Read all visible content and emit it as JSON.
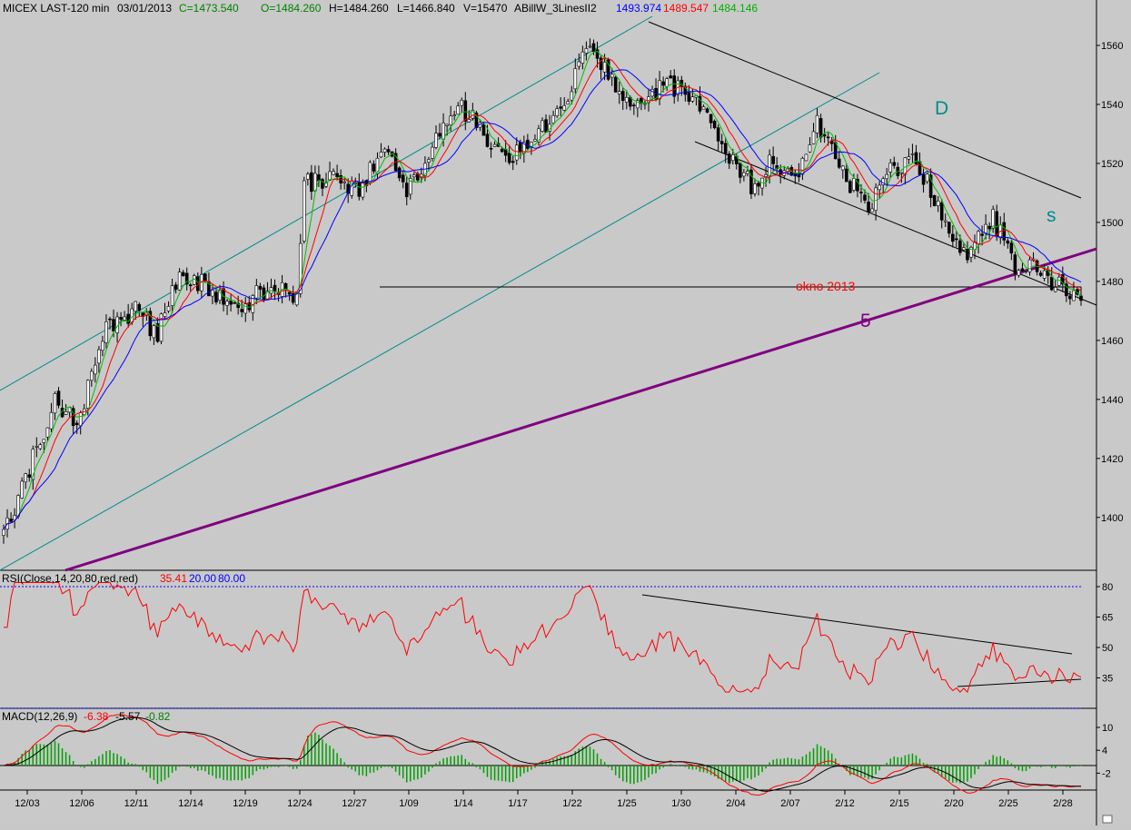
{
  "header": {
    "symbol": "MICEX LAST-120 min",
    "date": "03/01/2013",
    "close": "C=1473.540",
    "open": "O=1484.260",
    "high": "H=1484.260",
    "low": "L=1466.840",
    "volume": "V=15470",
    "indicator": "ABillW_3LinesII2",
    "ind_blue": "1493.974",
    "ind_red": "1489.547",
    "ind_green": "1484.146"
  },
  "rsi_header": {
    "label": "RSI(Close,14,20,80,red,red)",
    "value": "35.41",
    "low": "20.00",
    "high": "80.00"
  },
  "macd_header": {
    "label": "MACD(12,26,9)",
    "macd": "-6.38",
    "signal": "-5.57",
    "hist": "-0.82"
  },
  "annotations": {
    "window": "okno 2013",
    "d": "D",
    "s": "s",
    "five": "5"
  },
  "colors": {
    "background": "#c9c9c9",
    "up_candle": "#ffffff",
    "down_candle": "#000000",
    "blue": "#0000ff",
    "red": "#ff0000",
    "green": "#00c000",
    "channel": "#008b8b",
    "trend5": "#800080",
    "hist": "#00a000"
  },
  "chart_data": [
    {
      "type": "candlestick",
      "title": "MICEX LAST-120 min",
      "xlabel": "",
      "ylabel": "",
      "ylim": [
        1383,
        1568
      ],
      "y_ticks": [
        1400,
        1420,
        1440,
        1460,
        1480,
        1500,
        1520,
        1540,
        1560
      ],
      "x_ticks": [
        "12/03",
        "12/06",
        "12/11",
        "12/14",
        "12/19",
        "12/24",
        "12/27",
        "1/09",
        "1/14",
        "1/17",
        "1/22",
        "1/25",
        "1/30",
        "2/04",
        "2/07",
        "2/12",
        "2/15",
        "2/20",
        "2/25",
        "2/28"
      ],
      "anchors": [
        [
          0,
          1395
        ],
        [
          6,
          1413
        ],
        [
          14,
          1440
        ],
        [
          20,
          1432
        ],
        [
          28,
          1464
        ],
        [
          36,
          1470
        ],
        [
          42,
          1462
        ],
        [
          48,
          1484
        ],
        [
          56,
          1478
        ],
        [
          64,
          1471
        ],
        [
          72,
          1478
        ],
        [
          80,
          1476
        ],
        [
          82,
          1514
        ],
        [
          90,
          1514
        ],
        [
          98,
          1512
        ],
        [
          104,
          1527
        ],
        [
          110,
          1510
        ],
        [
          118,
          1527
        ],
        [
          124,
          1540
        ],
        [
          130,
          1532
        ],
        [
          136,
          1521
        ],
        [
          144,
          1528
        ],
        [
          152,
          1538
        ],
        [
          160,
          1562
        ],
        [
          166,
          1548
        ],
        [
          172,
          1541
        ],
        [
          180,
          1546
        ],
        [
          188,
          1544
        ],
        [
          196,
          1527
        ],
        [
          204,
          1512
        ],
        [
          210,
          1522
        ],
        [
          216,
          1513
        ],
        [
          222,
          1534
        ],
        [
          228,
          1518
        ],
        [
          236,
          1505
        ],
        [
          242,
          1517
        ],
        [
          248,
          1522
        ],
        [
          254,
          1509
        ],
        [
          262,
          1489
        ],
        [
          270,
          1501
        ],
        [
          276,
          1486
        ],
        [
          282,
          1484
        ],
        [
          288,
          1478
        ],
        [
          294,
          1473
        ]
      ],
      "last_close": 1473.54,
      "series": [
        {
          "name": "ABillW blue",
          "last": 1493.974
        },
        {
          "name": "ABillW red",
          "last": 1489.547
        },
        {
          "name": "ABillW green",
          "last": 1484.146
        }
      ],
      "horizontal_level": 1479.5
    },
    {
      "type": "line",
      "title": "RSI(Close,14,20,80,red,red)",
      "ylim": [
        15,
        85
      ],
      "y_ticks": [
        35,
        50,
        65,
        80
      ],
      "levels": [
        20,
        80
      ],
      "last": 35.41
    },
    {
      "type": "line",
      "title": "MACD(12,26,9)",
      "ylim": [
        -5,
        11
      ],
      "y_ticks": [
        -2,
        4,
        10
      ],
      "series": [
        {
          "name": "MACD",
          "last": -6.38
        },
        {
          "name": "Signal",
          "last": -5.57
        },
        {
          "name": "Histogram",
          "last": -0.82
        }
      ]
    }
  ]
}
